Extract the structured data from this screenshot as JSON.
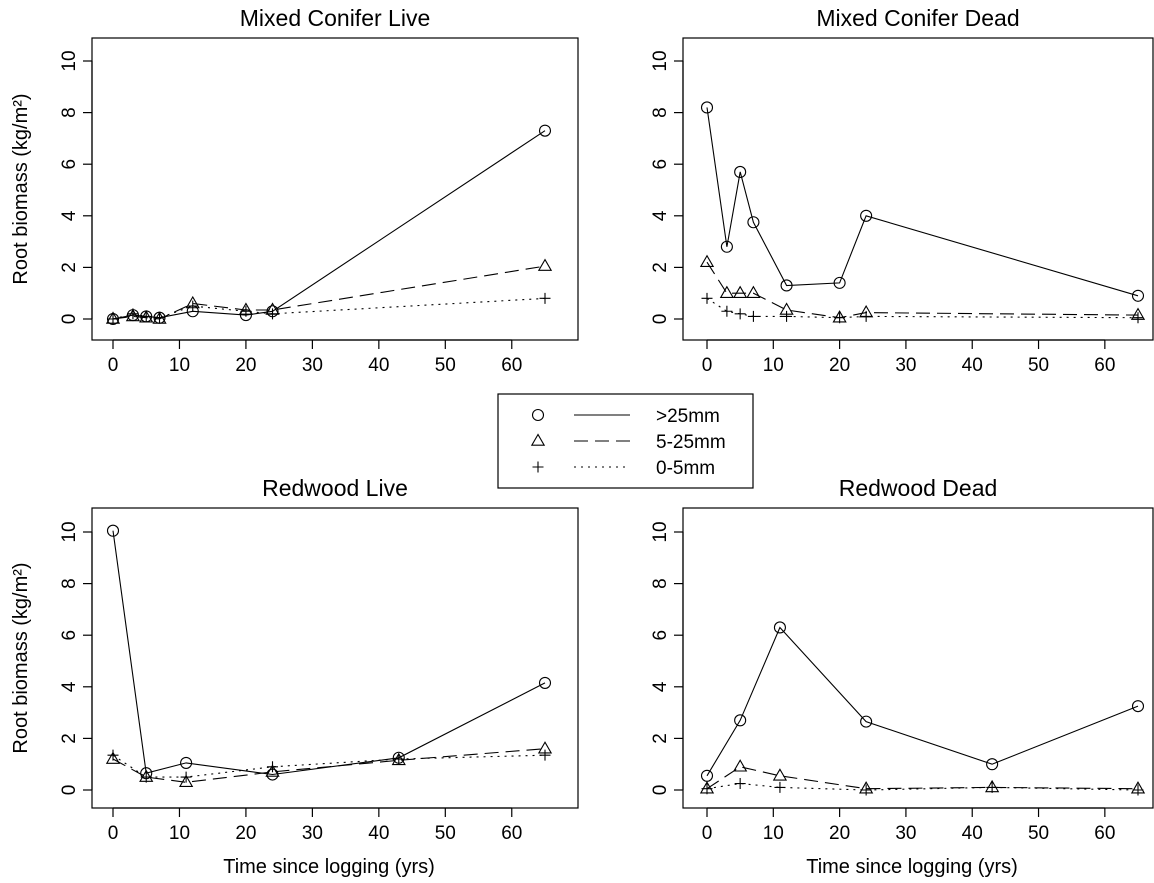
{
  "chart_data": {
    "type": "line",
    "shared": {
      "ylabel": "Root biomass (kg/m²)",
      "xlabel": "Time since logging (yrs)",
      "xticks": [
        0,
        10,
        20,
        30,
        40,
        50,
        60
      ],
      "yticks": [
        0,
        2,
        4,
        6,
        8,
        10
      ],
      "xlim": [
        0,
        65
      ],
      "ylim": [
        0,
        10
      ],
      "grid": false,
      "colors": {
        "line": "#000000",
        "background": "#ffffff"
      }
    },
    "legend": {
      "placement": "center",
      "entries": [
        {
          "label": ">25mm",
          "marker": "circle",
          "line": "solid"
        },
        {
          "label": "5-25mm",
          "marker": "triangle",
          "line": "dashed"
        },
        {
          "label": "0-5mm",
          "marker": "plus",
          "line": "dotted"
        }
      ]
    },
    "panels": [
      {
        "title": "Mixed Conifer Live",
        "x": [
          0,
          3,
          5,
          7,
          12,
          20,
          24,
          65
        ],
        "series": [
          {
            "name": ">25mm",
            "values": [
              0.0,
              0.15,
              0.1,
              0.05,
              0.3,
              0.15,
              0.3,
              7.3
            ]
          },
          {
            "name": "5-25mm",
            "values": [
              0.0,
              0.1,
              0.05,
              0.0,
              0.6,
              0.35,
              0.35,
              2.05
            ]
          },
          {
            "name": "0-5mm",
            "values": [
              0.0,
              0.2,
              0.1,
              0.05,
              0.5,
              0.3,
              0.2,
              0.8
            ]
          }
        ]
      },
      {
        "title": "Mixed Conifer Dead",
        "x": [
          0,
          3,
          5,
          7,
          12,
          20,
          24,
          65
        ],
        "series": [
          {
            "name": ">25mm",
            "values": [
              8.2,
              2.8,
              5.7,
              3.75,
              1.3,
              1.4,
              4.0,
              0.9
            ]
          },
          {
            "name": "5-25mm",
            "values": [
              2.2,
              1.0,
              1.0,
              1.0,
              0.35,
              0.05,
              0.25,
              0.15
            ]
          },
          {
            "name": "0-5mm",
            "values": [
              0.8,
              0.3,
              0.2,
              0.1,
              0.1,
              0.05,
              0.1,
              0.05
            ]
          }
        ]
      },
      {
        "title": "Redwood Live",
        "x": [
          0,
          5,
          11,
          24,
          43,
          65
        ],
        "series": [
          {
            "name": ">25mm",
            "values": [
              10.05,
              0.65,
              1.05,
              0.6,
              1.25,
              4.15
            ]
          },
          {
            "name": "5-25mm",
            "values": [
              1.2,
              0.5,
              0.3,
              0.7,
              1.15,
              1.6
            ]
          },
          {
            "name": "0-5mm",
            "values": [
              1.35,
              0.5,
              0.5,
              0.9,
              1.2,
              1.35
            ]
          }
        ]
      },
      {
        "title": "Redwood Dead",
        "x": [
          0,
          5,
          11,
          24,
          43,
          65
        ],
        "series": [
          {
            "name": ">25mm",
            "values": [
              0.55,
              2.7,
              6.3,
              2.65,
              1.0,
              3.25
            ]
          },
          {
            "name": "5-25mm",
            "values": [
              0.05,
              0.9,
              0.55,
              0.05,
              0.1,
              0.05
            ]
          },
          {
            "name": "0-5mm",
            "values": [
              0.05,
              0.25,
              0.1,
              0.0,
              0.1,
              0.0
            ]
          }
        ]
      }
    ]
  }
}
